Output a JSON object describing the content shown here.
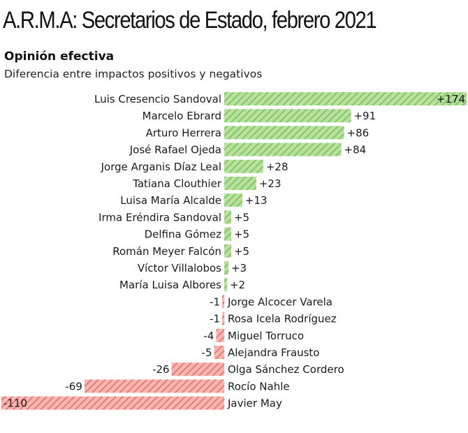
{
  "chart_data": {
    "type": "bar",
    "orientation": "horizontal",
    "title": "A.R.M.A: Secretarios de Estado, febrero 2021",
    "subtitle": "Opinión efectiva",
    "description": "Diferencia entre impactos positivos y negativos",
    "categories": [
      "Luis Cresencio Sandoval",
      "Marcelo Ebrard",
      "Arturo Herrera",
      "José Rafael Ojeda",
      "Jorge Arganis Díaz Leal",
      "Tatiana Clouthier",
      "Luisa María Alcalde",
      "Irma Eréndira Sandoval",
      "Delfina Gómez",
      "Román Meyer Falcón",
      "Víctor Villalobos",
      "María Luisa Albores",
      "Jorge Alcocer Varela",
      "Rosa Icela Rodríguez",
      "Miguel Torruco",
      "Alejandra Frausto",
      "Olga Sánchez Cordero",
      "Rocío Nahle",
      "Javier May"
    ],
    "values": [
      174,
      91,
      86,
      84,
      28,
      23,
      13,
      5,
      5,
      5,
      3,
      2,
      -1,
      -1,
      -4,
      -5,
      -26,
      -69,
      -110
    ],
    "value_labels": [
      "+174",
      "+91",
      "+86",
      "+84",
      "+28",
      "+23",
      "+13",
      "+5",
      "+5",
      "+5",
      "+3",
      "+2",
      "-1",
      "-1",
      "-4",
      "-5",
      "-26",
      "-69",
      "-110"
    ],
    "xlim": [
      -110,
      174
    ],
    "colors": {
      "positive_fill": "#b8e0a0",
      "positive_hatch": "#7cc45a",
      "negative_fill": "#f6b7b3",
      "negative_hatch": "#e9736d"
    },
    "grid": false,
    "legend": "none"
  }
}
